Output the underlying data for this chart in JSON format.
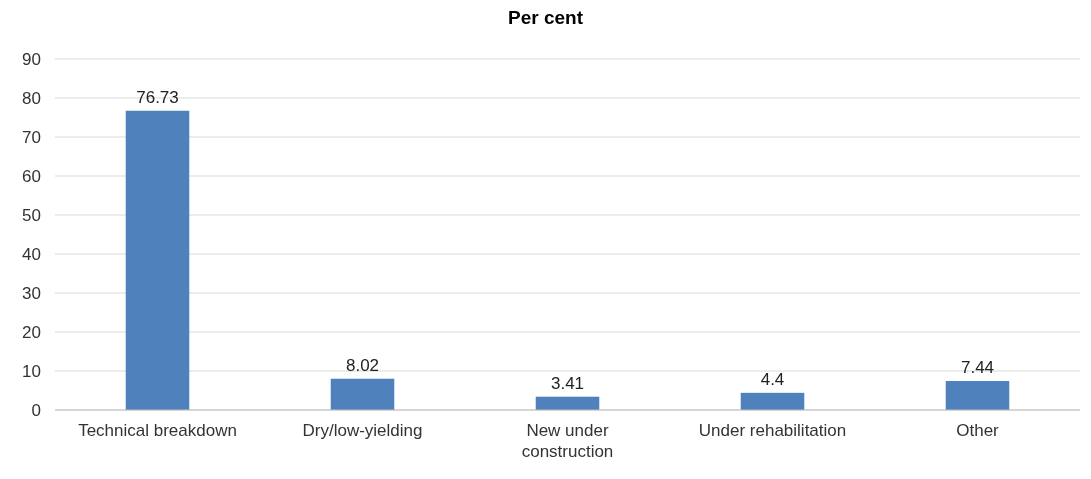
{
  "chart_data": {
    "type": "bar",
    "title": "Per cent",
    "categories": [
      "Technical breakdown",
      "Dry/low-yielding",
      "New under construction",
      "Under rehabilitation",
      "Other"
    ],
    "values": [
      76.73,
      8.02,
      3.41,
      4.4,
      7.44
    ],
    "color": "#4f81bd",
    "ylim": [
      0,
      90
    ],
    "yticks": [
      0,
      10,
      20,
      30,
      40,
      50,
      60,
      70,
      80,
      90
    ],
    "grid": "y",
    "data_labels": true
  }
}
